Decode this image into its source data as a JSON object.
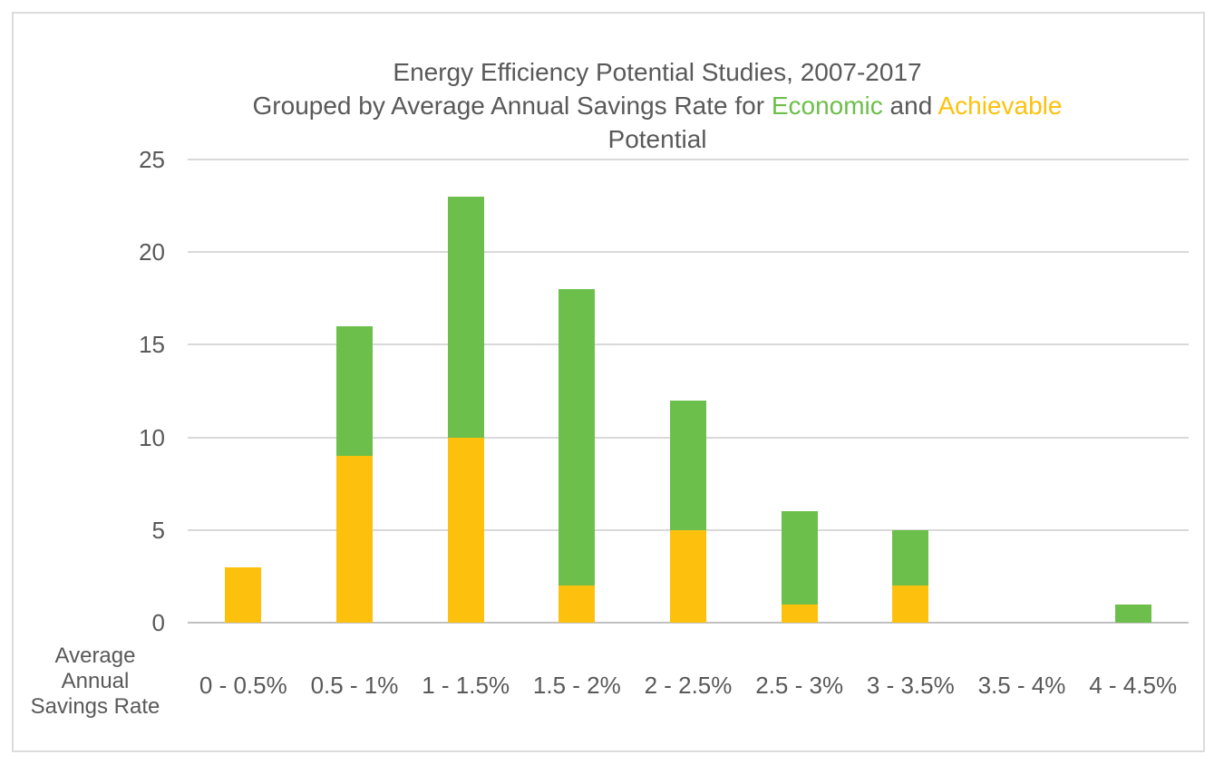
{
  "title": {
    "line1": "Energy Efficiency Potential Studies, 2007-2017",
    "line2_prefix": "Grouped by Average Annual Savings Rate for ",
    "economic_word": "Economic",
    "and_word": " and ",
    "achievable_word": "Achievable",
    "line3": "Potential"
  },
  "axis_title": {
    "line1": "Average",
    "line2": "Annual",
    "line3": "Savings Rate"
  },
  "colors": {
    "economic_green": "#6CBF4A",
    "achievable_yellow": "#FDC10D",
    "text_gray": "#595959",
    "gridline": "#D9D9D9",
    "axis_line": "#C0C0C0",
    "frame_border": "#DCDCDC"
  },
  "chart_data": {
    "type": "bar",
    "stacked": true,
    "title": "Energy Efficiency Potential Studies, 2007-2017 Grouped by Average Annual Savings Rate for Economic and Achievable Potential",
    "categories": [
      "0 - 0.5%",
      "0.5 - 1%",
      "1 - 1.5%",
      "1.5 - 2%",
      "2 - 2.5%",
      "2.5 - 3%",
      "3 - 3.5%",
      "3.5 - 4%",
      "4 - 4.5%"
    ],
    "series": [
      {
        "name": "Achievable",
        "color": "#FDC10D",
        "values": [
          3,
          9,
          10,
          2,
          5,
          1,
          2,
          0,
          0
        ]
      },
      {
        "name": "Economic",
        "color": "#6CBF4A",
        "values": [
          0,
          7,
          13,
          16,
          7,
          5,
          3,
          0,
          1
        ]
      }
    ],
    "totals": [
      3,
      16,
      23,
      18,
      12,
      6,
      5,
      0,
      1
    ],
    "xlabel": "Average Annual Savings Rate",
    "ylabel": "",
    "ylim": [
      0,
      25
    ],
    "y_ticks": [
      0,
      5,
      10,
      15,
      20,
      25
    ],
    "grid": true,
    "legend_position": "embedded-in-title"
  }
}
